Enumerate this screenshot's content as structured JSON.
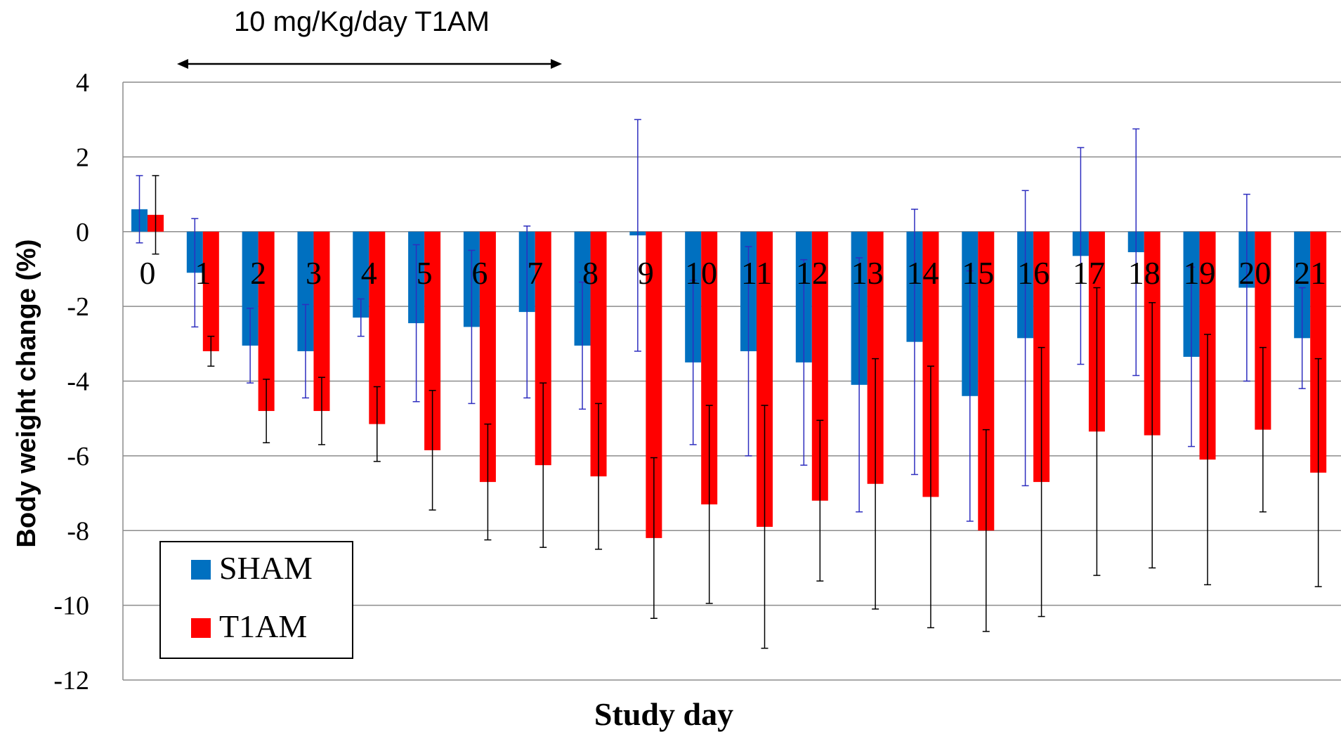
{
  "chart_data": {
    "type": "bar",
    "annotation": "10 mg/Kg/day T1AM",
    "xlabel": "Study day",
    "ylabel": "Body weight change (%)",
    "ylim": [
      -12,
      4
    ],
    "yticks": [
      4,
      2,
      0,
      -2,
      -4,
      -6,
      -8,
      -10,
      -12
    ],
    "grid": true,
    "legend_position": "bottom-left",
    "categories": [
      "0",
      "1",
      "2",
      "3",
      "4",
      "5",
      "6",
      "7",
      "8",
      "9",
      "10",
      "11",
      "12",
      "13",
      "14",
      "15",
      "16",
      "17",
      "18",
      "19",
      "20",
      "21"
    ],
    "series": [
      {
        "name": "SHAM",
        "color": "#0070C0",
        "error_color": "#2E2EBF",
        "values": [
          0.6,
          -1.1,
          -3.05,
          -3.2,
          -2.3,
          -2.45,
          -2.55,
          -2.15,
          -3.05,
          -0.1,
          -3.5,
          -3.2,
          -3.5,
          -4.1,
          -2.95,
          -4.4,
          -2.85,
          -0.65,
          -0.55,
          -3.35,
          -1.5,
          -2.85
        ],
        "errors": [
          0.9,
          1.45,
          1.0,
          1.25,
          0.5,
          2.1,
          2.05,
          2.3,
          1.7,
          3.1,
          2.2,
          2.8,
          2.75,
          3.4,
          3.55,
          3.35,
          3.95,
          2.9,
          3.3,
          2.4,
          2.5,
          1.35
        ]
      },
      {
        "name": "T1AM",
        "color": "#FF0000",
        "error_color": "#000000",
        "values": [
          0.45,
          -3.2,
          -4.8,
          -4.8,
          -5.15,
          -5.85,
          -6.7,
          -6.25,
          -6.55,
          -8.2,
          -7.3,
          -7.9,
          -7.2,
          -6.75,
          -7.1,
          -8.0,
          -6.7,
          -5.35,
          -5.45,
          -6.1,
          -5.3,
          -6.45
        ],
        "errors": [
          1.05,
          0.4,
          0.85,
          0.9,
          1.0,
          1.6,
          1.55,
          2.2,
          1.95,
          2.15,
          2.65,
          3.25,
          2.15,
          3.35,
          3.5,
          2.7,
          3.6,
          3.85,
          3.55,
          3.35,
          2.2,
          3.05
        ]
      }
    ]
  }
}
